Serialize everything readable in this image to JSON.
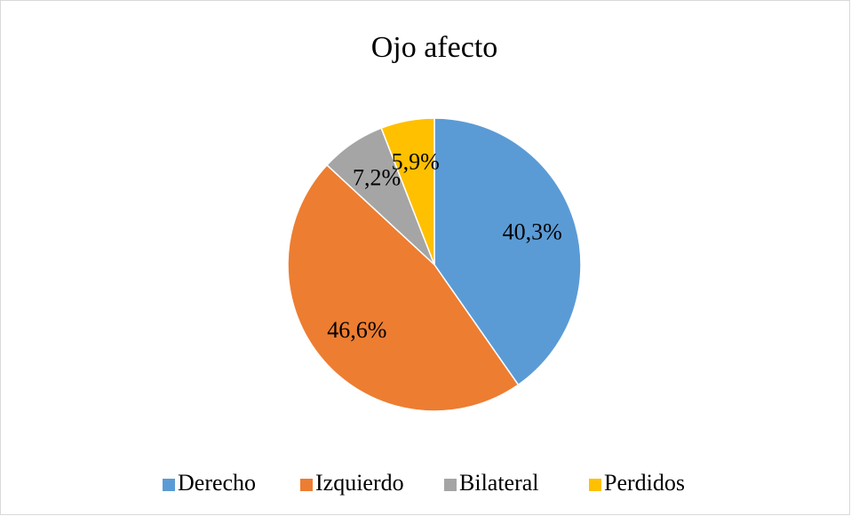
{
  "chart_data": {
    "type": "pie",
    "title": "Ojo afecto",
    "categories": [
      "Derecho",
      "Izquierdo",
      "Bilateral",
      "Perdidos"
    ],
    "values": [
      40.3,
      46.6,
      7.2,
      5.9
    ],
    "value_labels": [
      "40,3%",
      "46,6%",
      "7,2%",
      "5,9%"
    ],
    "colors": [
      "#5b9bd5",
      "#ed7d31",
      "#a5a5a5",
      "#ffc000"
    ],
    "legend": "bottom"
  }
}
